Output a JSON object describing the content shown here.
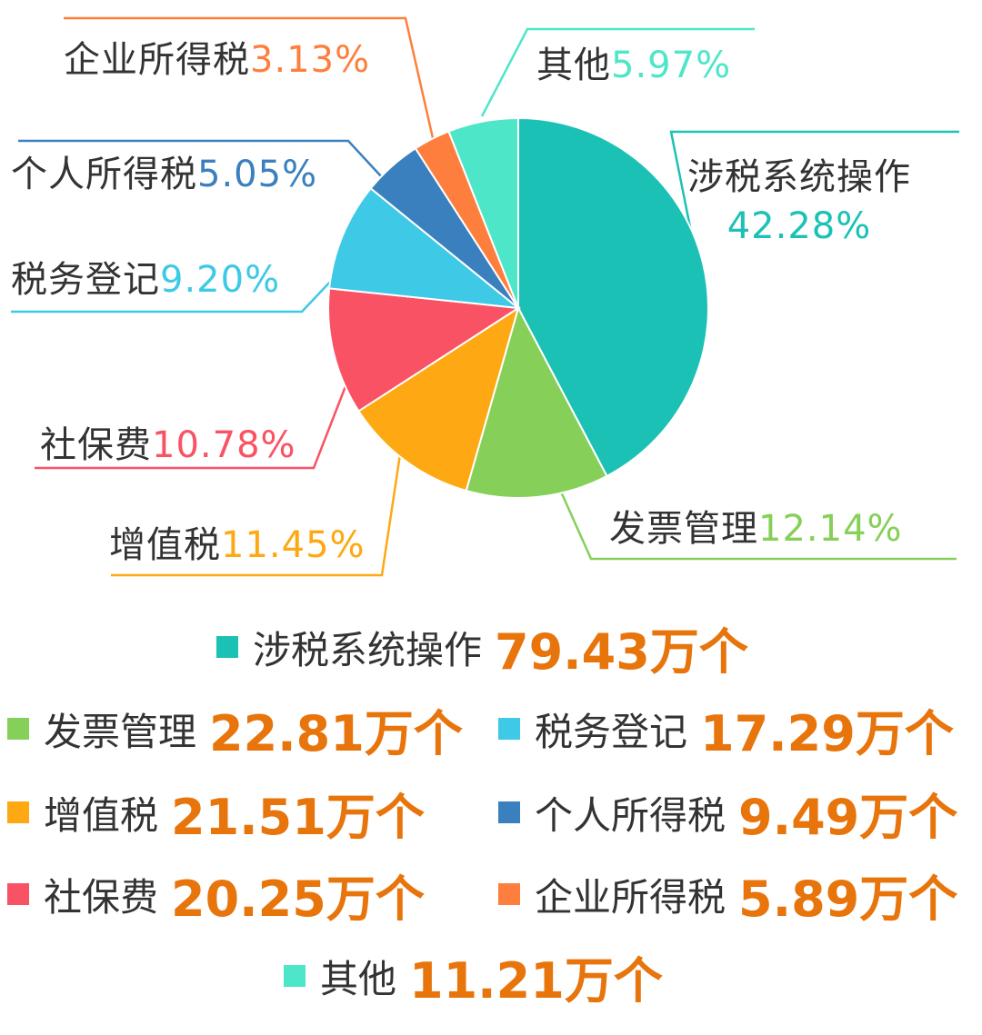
{
  "chart_data": {
    "type": "pie",
    "slices": [
      {
        "name": "涉税系统操作",
        "percent": 42.28,
        "percent_label": "42.28%",
        "value_label": "79.43万个",
        "color": "#1cc1b5",
        "label_color": "#1cc1b5",
        "legend_swatch": "#1cc1b5"
      },
      {
        "name": "发票管理",
        "percent": 12.14,
        "percent_label": "12.14%",
        "value_label": "22.81万个",
        "color": "#86d05a",
        "label_color": "#86d05a",
        "legend_swatch": "#86d05a"
      },
      {
        "name": "增值税",
        "percent": 11.45,
        "percent_label": "11.45%",
        "value_label": "21.51万个",
        "color": "#fea813",
        "label_color": "#fea813",
        "legend_swatch": "#fea813"
      },
      {
        "name": "社保费",
        "percent": 10.78,
        "percent_label": "10.78%",
        "value_label": "20.25万个",
        "color": "#fa5265",
        "label_color": "#fa5265",
        "legend_swatch": "#fa5265"
      },
      {
        "name": "税务登记",
        "percent": 9.2,
        "percent_label": "9.20%",
        "value_label": "17.29万个",
        "color": "#3ec9e6",
        "label_color": "#3ec9e6",
        "legend_swatch": "#3ec9e6"
      },
      {
        "name": "个人所得税",
        "percent": 5.05,
        "percent_label": "5.05%",
        "value_label": "9.49万个",
        "color": "#3a80be",
        "label_color": "#3a80be",
        "legend_swatch": "#3a80be"
      },
      {
        "name": "企业所得税",
        "percent": 3.13,
        "percent_label": "3.13%",
        "value_label": "5.89万个",
        "color": "#fe7f3d",
        "label_color": "#fe7f3d",
        "legend_swatch": "#fe7f3d"
      },
      {
        "name": "其他",
        "percent": 5.97,
        "percent_label": "5.97%",
        "value_label": "11.21万个",
        "color": "#4ee6c8",
        "label_color": "#4ee6c8",
        "legend_swatch": "#4ee6c8"
      }
    ],
    "value_color": "#e8740c"
  }
}
